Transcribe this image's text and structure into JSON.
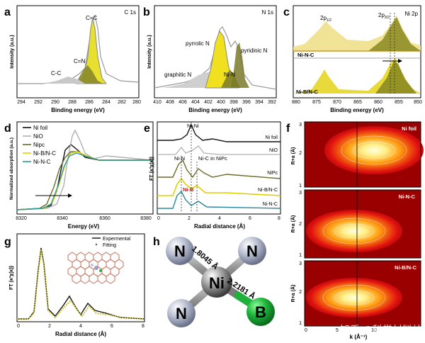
{
  "figure": {
    "panels": {
      "a": {
        "letter": "a",
        "tag": "C 1s",
        "xlabel": "Binding energy (eV)",
        "ylabel": "Intensity (a.u.)",
        "ticks": [
          "294",
          "292",
          "290",
          "288",
          "286",
          "284",
          "282",
          "280"
        ],
        "peaks": [
          "C=C",
          "C=N",
          "C-C"
        ]
      },
      "b": {
        "letter": "b",
        "tag": "N 1s",
        "xlabel": "Binding energy (eV)",
        "ylabel": "Intensity (a.u.)",
        "ticks": [
          "410",
          "408",
          "406",
          "404",
          "402",
          "400",
          "398",
          "396",
          "394",
          "392"
        ],
        "peaks": [
          "pyrrolic N",
          "pyridinic N",
          "graphitic N",
          "Ni-N"
        ]
      },
      "c": {
        "letter": "c",
        "tag": "Ni 2p",
        "xlabel": "Binding energy (eV)",
        "ticks": [
          "880",
          "875",
          "870",
          "865",
          "860",
          "855",
          "850"
        ],
        "peak1_main": "2p",
        "peak1_sub": "1/2",
        "peak2_main": "2p",
        "peak2_sub": "3/2",
        "sample_top": "Ni-N-C",
        "sample_bottom": "Ni-B/N-C"
      },
      "d": {
        "letter": "d",
        "xlabel": "Energy (eV)",
        "ylabel": "Normalized absorption (a.u.)",
        "ticks": [
          "8320",
          "8340",
          "8360",
          "8380"
        ],
        "legend": [
          {
            "name": "Ni foil",
            "color": "#111111"
          },
          {
            "name": "NiO",
            "color": "#b0b0b0"
          },
          {
            "name": "Nipc",
            "color": "#6b6b2a"
          },
          {
            "name": "Ni-B/N-C",
            "color": "#e0d000"
          },
          {
            "name": "Ni-N-C",
            "color": "#2a9a9a"
          }
        ]
      },
      "e": {
        "letter": "e",
        "xlabel": "Radial distance (Å)",
        "ylabel": "FT (κ³χ(κ))",
        "ticks": [
          "0",
          "2",
          "4",
          "6",
          "8"
        ],
        "ann_nini": "Ni-Ni",
        "ann_nin": "Ni-N",
        "ann_nic": "Ni-C in NiPc",
        "ann_nib": "Ni-B",
        "curve_labels": [
          "Ni foil",
          "NiO",
          "NiPc",
          "Ni-B/N-C",
          "Ni-N-C"
        ],
        "colors": [
          "#111111",
          "#b0b0b0",
          "#6b6b2a",
          "#e0d000",
          "#2a8a9a"
        ]
      },
      "f": {
        "letter": "f",
        "ylabel": "R+a (Å)",
        "xlabel": "k (Å⁻¹)",
        "xticks": [
          "0",
          "5",
          "10"
        ],
        "yticks": [
          "1",
          "2",
          "3"
        ],
        "maps": [
          "Ni foil",
          "Ni-N-C",
          "Ni-B/N-C"
        ]
      },
      "g": {
        "letter": "g",
        "xlabel": "Radial distance (Å)",
        "ylabel": "FT (κ³χ(κ))",
        "ticks": [
          "0",
          "2",
          "4",
          "6",
          "8"
        ],
        "legend_exp": "Expermental",
        "legend_fit": "Fitting"
      },
      "h": {
        "letter": "h",
        "center": "Ni",
        "ligand": "N",
        "boron": "B",
        "bond_nn": "1.8045 Å",
        "bond_nb": "2.2181 Å"
      }
    },
    "watermark": "知乎 @科学材料站"
  }
}
